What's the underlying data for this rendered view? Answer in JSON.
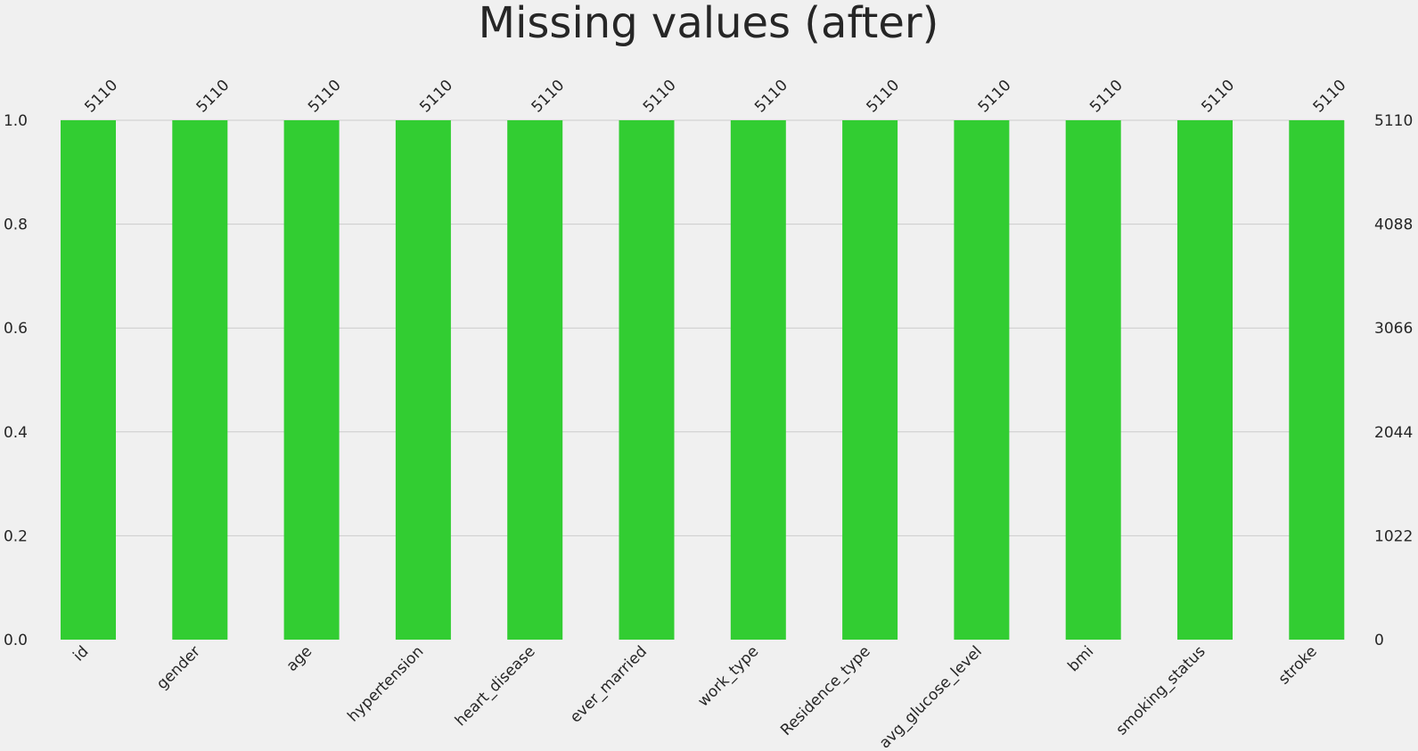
{
  "chart_data": {
    "type": "bar",
    "title": "Missing values (after)",
    "categories": [
      "id",
      "gender",
      "age",
      "hypertension",
      "heart_disease",
      "ever_married",
      "work_type",
      "Residence_type",
      "avg_glucose_level",
      "bmi",
      "smoking_status",
      "stroke"
    ],
    "values": [
      1.0,
      1.0,
      1.0,
      1.0,
      1.0,
      1.0,
      1.0,
      1.0,
      1.0,
      1.0,
      1.0,
      1.0
    ],
    "counts": [
      5110,
      5110,
      5110,
      5110,
      5110,
      5110,
      5110,
      5110,
      5110,
      5110,
      5110,
      5110
    ],
    "ylim": [
      0,
      1.0
    ],
    "left_ticks": [
      "0.0",
      "0.2",
      "0.4",
      "0.6",
      "0.8",
      "1.0"
    ],
    "left_tick_values": [
      0.0,
      0.2,
      0.4,
      0.6,
      0.8,
      1.0
    ],
    "right_ticks": [
      "0",
      "1022",
      "2044",
      "3066",
      "4088",
      "5110"
    ],
    "grid": true,
    "bar_color": "#32cd32",
    "background": "#f0f0f0",
    "grid_color": "#cbcbcb",
    "text_color": "#262626"
  }
}
